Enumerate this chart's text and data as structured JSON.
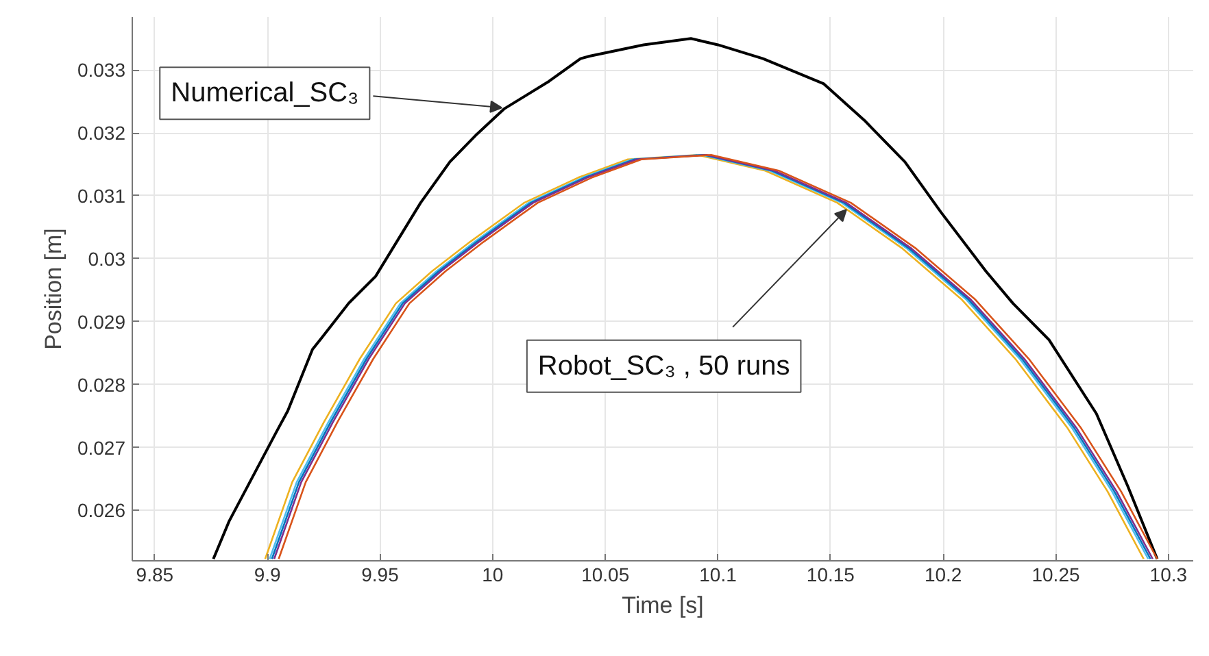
{
  "chart_data": {
    "type": "line",
    "xlabel": "Time [s]",
    "ylabel": "Position [m]",
    "xlim": [
      9.84,
      10.311
    ],
    "ylim": [
      0.0252,
      0.03384
    ],
    "xticks": [
      9.85,
      9.9,
      9.95,
      10,
      10.05,
      10.1,
      10.15,
      10.2,
      10.25,
      10.3
    ],
    "yticks": [
      0.026,
      0.027,
      0.028,
      0.029,
      0.03,
      0.031,
      0.032,
      0.033
    ],
    "grid": true,
    "line_style": "solid",
    "marker": "none",
    "annotations": [
      {
        "text": "Numerical_SC₃",
        "x": 10.004,
        "y": 0.0324
      },
      {
        "text": "Robot_SC₃ , 50 runs",
        "x": 10.157,
        "y": 0.03078
      }
    ],
    "series": [
      {
        "color": "#000000",
        "x": [
          9.876,
          9.883,
          9.904,
          9.909,
          9.92,
          9.924,
          9.936,
          9.948,
          9.968,
          9.981,
          9.993,
          10.005,
          10.025,
          10.039,
          10.043,
          10.067,
          10.088,
          10.1,
          10.12,
          10.147,
          10.165,
          10.183,
          10.199,
          10.219,
          10.231,
          10.247,
          10.268,
          10.282,
          10.295
        ],
        "values": [
          0.02523,
          0.02583,
          0.02725,
          0.02758,
          0.02856,
          0.02874,
          0.02929,
          0.02972,
          0.03089,
          0.03154,
          0.03198,
          0.03238,
          0.03282,
          0.03318,
          0.03322,
          0.0334,
          0.0335,
          0.0334,
          0.03318,
          0.03278,
          0.0322,
          0.03154,
          0.03074,
          0.0298,
          0.02929,
          0.02871,
          0.02754,
          0.02638,
          0.02523
        ]
      },
      {
        "color": "#edb120",
        "x": [
          9.899,
          9.911,
          9.925,
          9.941,
          9.957,
          9.973,
          9.99,
          10.014,
          10.038,
          10.06,
          10.091,
          10.121,
          10.153,
          10.182,
          10.208,
          10.232,
          10.255,
          10.273,
          10.289
        ],
        "values": [
          0.02523,
          0.02645,
          0.0274,
          0.02841,
          0.02929,
          0.0298,
          0.03027,
          0.03089,
          0.03129,
          0.03158,
          0.03165,
          0.0314,
          0.03089,
          0.03016,
          0.02936,
          0.02841,
          0.02732,
          0.0263,
          0.02523
        ]
      },
      {
        "color": "#4dbeee",
        "x": [
          9.901,
          9.913,
          9.927,
          9.943,
          9.959,
          9.975,
          9.992,
          10.016,
          10.04,
          10.062,
          10.093,
          10.123,
          10.155,
          10.184,
          10.21,
          10.234,
          10.257,
          10.275,
          10.291
        ],
        "values": [
          0.02523,
          0.02645,
          0.0274,
          0.02841,
          0.02929,
          0.0298,
          0.03027,
          0.03089,
          0.03129,
          0.03158,
          0.03165,
          0.0314,
          0.03089,
          0.03016,
          0.02936,
          0.02841,
          0.02732,
          0.0263,
          0.02523
        ]
      },
      {
        "color": "#0072bd",
        "x": [
          9.902,
          9.914,
          9.928,
          9.944,
          9.96,
          9.976,
          9.993,
          10.017,
          10.041,
          10.063,
          10.094,
          10.124,
          10.156,
          10.185,
          10.211,
          10.235,
          10.258,
          10.276,
          10.292
        ],
        "values": [
          0.02523,
          0.02645,
          0.0274,
          0.02841,
          0.02929,
          0.0298,
          0.03027,
          0.03089,
          0.03129,
          0.03158,
          0.03165,
          0.0314,
          0.03089,
          0.03016,
          0.02936,
          0.02841,
          0.02732,
          0.0263,
          0.02523
        ]
      },
      {
        "color": "#7e2f8e",
        "x": [
          9.903,
          9.915,
          9.929,
          9.945,
          9.961,
          9.977,
          9.994,
          10.018,
          10.042,
          10.064,
          10.095,
          10.125,
          10.157,
          10.186,
          10.212,
          10.236,
          10.259,
          10.277,
          10.293
        ],
        "values": [
          0.02523,
          0.02645,
          0.0274,
          0.02841,
          0.02929,
          0.0298,
          0.03027,
          0.03089,
          0.03129,
          0.03158,
          0.03165,
          0.0314,
          0.03089,
          0.03016,
          0.02936,
          0.02841,
          0.02732,
          0.0263,
          0.02523
        ]
      },
      {
        "color": "#d95319",
        "x": [
          9.905,
          9.917,
          9.931,
          9.947,
          9.963,
          9.979,
          9.996,
          10.02,
          10.044,
          10.066,
          10.097,
          10.127,
          10.159,
          10.188,
          10.214,
          10.238,
          10.261,
          10.279,
          10.295
        ],
        "values": [
          0.02523,
          0.02645,
          0.0274,
          0.02841,
          0.02929,
          0.0298,
          0.03027,
          0.03089,
          0.03129,
          0.03158,
          0.03165,
          0.0314,
          0.03089,
          0.03016,
          0.02936,
          0.02841,
          0.02732,
          0.0263,
          0.02523
        ]
      }
    ]
  }
}
